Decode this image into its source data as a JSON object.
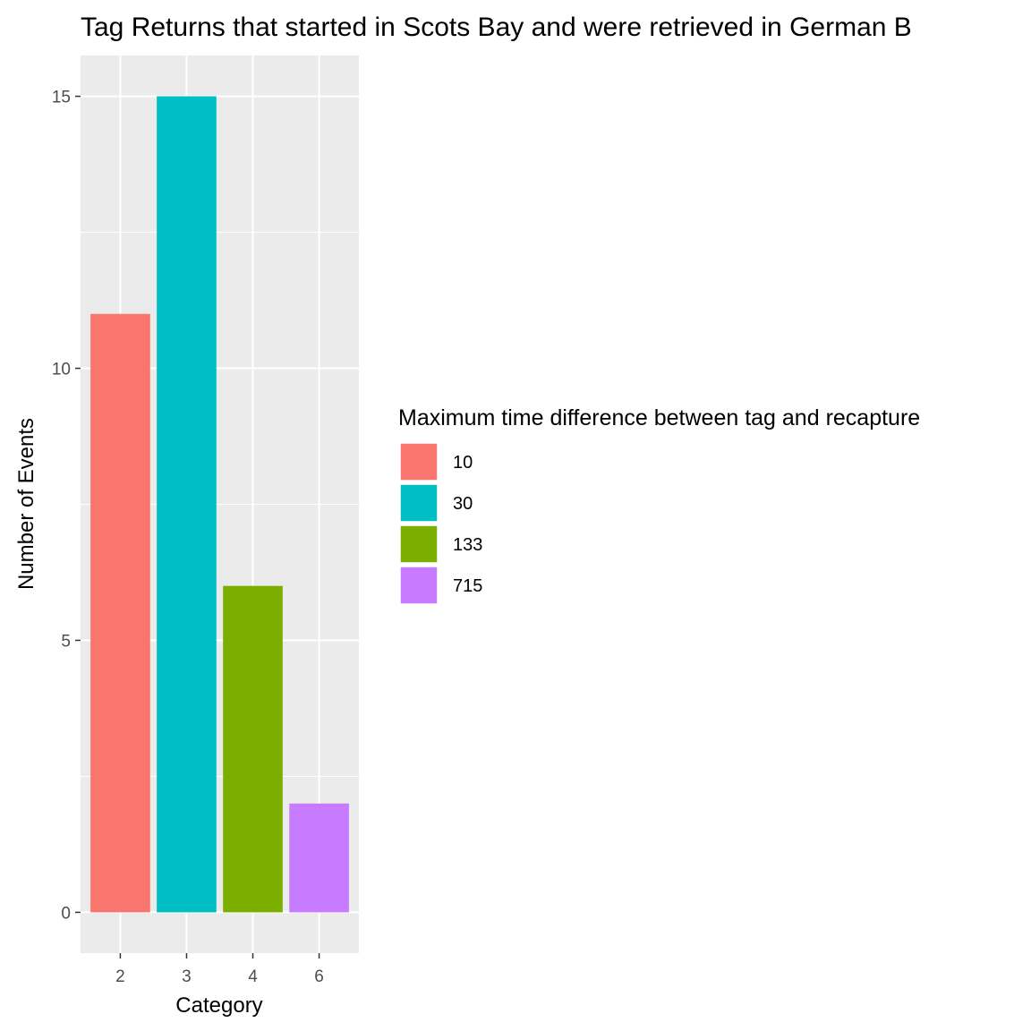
{
  "chart_data": {
    "type": "bar",
    "title": "Tag Returns that started in Scots Bay and were retrieved in German B",
    "xlabel": "Category",
    "ylabel": "Number of Events",
    "categories": [
      "2",
      "3",
      "4",
      "6"
    ],
    "values": [
      11,
      15,
      6,
      2
    ],
    "fill_groups": [
      "10",
      "30",
      "133",
      "715"
    ],
    "ylim": [
      -0.75,
      15.75
    ],
    "yticks": [
      0,
      5,
      10,
      15
    ],
    "grid": true,
    "legend": {
      "title": "Maximum time difference between tag and recapture",
      "placement": "right",
      "entries": [
        {
          "label": "10",
          "color": "#F8766D"
        },
        {
          "label": "30",
          "color": "#00BFC4"
        },
        {
          "label": "133",
          "color": "#7CAE00"
        },
        {
          "label": "715",
          "color": "#C77CFF"
        }
      ]
    }
  },
  "colors": {
    "panel_background": "#EBEBEB",
    "grid_major": "#FFFFFF",
    "tick_text": "#4D4D4D"
  }
}
